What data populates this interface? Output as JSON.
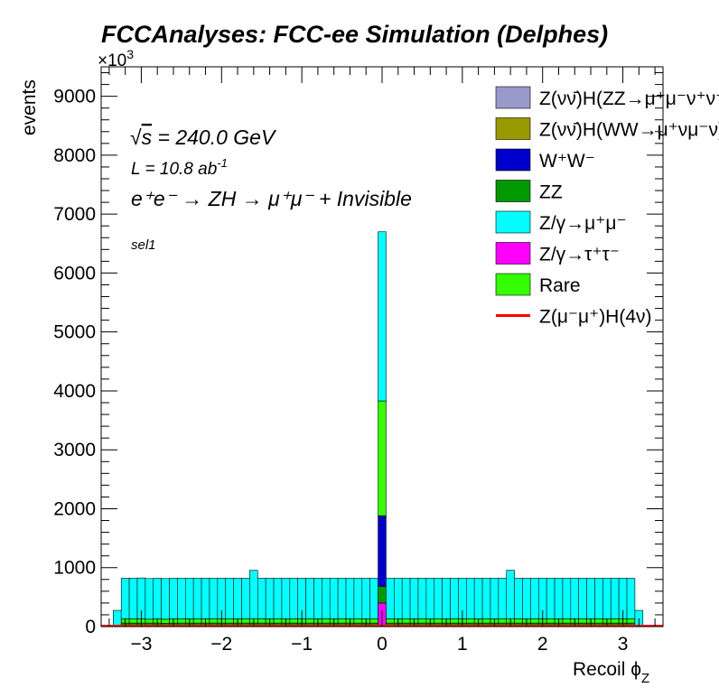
{
  "chart_data": {
    "type": "bar",
    "title": "FCCAnalyses: FCC-ee Simulation (Delphes)",
    "xlabel": "Recoil ϕ",
    "xlabel_sub": "Z",
    "ylabel": "events",
    "y_multiplier": "×10",
    "y_multiplier_exp": "3",
    "xlim": [
      -3.5,
      3.5
    ],
    "ylim": [
      0,
      9500
    ],
    "x_ticks": [
      -3,
      -2,
      -1,
      0,
      1,
      2,
      3
    ],
    "x_tick_labels": [
      "−3",
      "−2",
      "−1",
      "0",
      "1",
      "2",
      "3"
    ],
    "y_ticks": [
      0,
      1000,
      2000,
      3000,
      4000,
      5000,
      6000,
      7000,
      8000,
      9000
    ],
    "y_tick_labels": [
      "0",
      "1000",
      "2000",
      "3000",
      "4000",
      "5000",
      "6000",
      "7000",
      "8000",
      "9000"
    ],
    "annotations": {
      "sqrt_s": "s",
      "energy": " = 240.0 GeV",
      "lumi": "L = 10.8 ab",
      "lumi_exp": "-1",
      "process": "e⁺e⁻ → ZH → μ⁺μ⁻ + Invisible",
      "selection": "sel1"
    },
    "legend": [
      {
        "label": "Z(νν̄)H(ZZ→μ⁺μ⁻ν⁺ν⁻)",
        "color": "#9999cc",
        "type": "box"
      },
      {
        "label": "Z(νν̄)H(WW→μ⁺νμ⁻ν)",
        "color": "#999900",
        "type": "box"
      },
      {
        "label": "W⁺W⁻",
        "color": "#0000cc",
        "type": "box"
      },
      {
        "label": "ZZ",
        "color": "#009900",
        "type": "box"
      },
      {
        "label": "Z/γ→μ⁺μ⁻",
        "color": "#00ffff",
        "type": "box"
      },
      {
        "label": "Z/γ→τ⁺τ⁻",
        "color": "#ff00ff",
        "type": "box"
      },
      {
        "label": "Rare",
        "color": "#33ff00",
        "type": "box"
      },
      {
        "label": "Z(μ⁻μ⁺)H(4ν)",
        "color": "#ff0000",
        "type": "line"
      }
    ],
    "stack_order_bottom_to_top": [
      "Z/γ→τ⁺τ⁻",
      "ZZ",
      "W⁺W⁻",
      "Rare",
      "Z/γ→μ⁺μ⁻"
    ],
    "x_bins": [
      -3.3,
      -3.2,
      -3.1,
      -3.0,
      -2.9,
      -2.8,
      -2.7,
      -2.6,
      -2.5,
      -2.4,
      -2.3,
      -2.2,
      -2.1,
      -2.0,
      -1.9,
      -1.8,
      -1.7,
      -1.6,
      -1.5,
      -1.4,
      -1.3,
      -1.2,
      -1.1,
      -1.0,
      -0.9,
      -0.8,
      -0.7,
      -0.6,
      -0.5,
      -0.4,
      -0.3,
      -0.2,
      -0.1,
      0.0,
      0.1,
      0.2,
      0.3,
      0.4,
      0.5,
      0.6,
      0.7,
      0.8,
      0.9,
      1.0,
      1.1,
      1.2,
      1.3,
      1.4,
      1.5,
      1.6,
      1.7,
      1.8,
      1.9,
      2.0,
      2.1,
      2.2,
      2.3,
      2.4,
      2.5,
      2.6,
      2.7,
      2.8,
      2.9,
      3.0,
      3.1,
      3.2,
      3.3
    ],
    "series": [
      {
        "name": "Z/γ→τ⁺τ⁻",
        "values": [
          0,
          0,
          0,
          0,
          0,
          0,
          0,
          0,
          0,
          0,
          0,
          0,
          0,
          0,
          0,
          0,
          0,
          0,
          0,
          0,
          0,
          0,
          0,
          0,
          0,
          0,
          0,
          0,
          0,
          0,
          0,
          0,
          0,
          400,
          0,
          0,
          0,
          0,
          0,
          0,
          0,
          0,
          0,
          0,
          0,
          0,
          0,
          0,
          0,
          0,
          0,
          0,
          0,
          0,
          0,
          0,
          0,
          0,
          0,
          0,
          0,
          0,
          0,
          0,
          0,
          0
        ]
      },
      {
        "name": "ZZ",
        "values": [
          15,
          60,
          60,
          60,
          60,
          60,
          55,
          60,
          60,
          60,
          60,
          60,
          60,
          60,
          60,
          60,
          60,
          60,
          60,
          60,
          60,
          60,
          60,
          60,
          60,
          60,
          60,
          60,
          60,
          60,
          60,
          60,
          60,
          280,
          60,
          60,
          60,
          60,
          60,
          60,
          60,
          60,
          60,
          60,
          60,
          60,
          60,
          60,
          60,
          60,
          60,
          60,
          60,
          60,
          60,
          60,
          60,
          60,
          60,
          60,
          60,
          60,
          60,
          60,
          60,
          15
        ]
      },
      {
        "name": "W⁺W⁻",
        "values": [
          0,
          0,
          0,
          0,
          0,
          0,
          0,
          0,
          0,
          0,
          0,
          0,
          0,
          0,
          0,
          0,
          0,
          0,
          0,
          0,
          0,
          0,
          0,
          0,
          0,
          0,
          0,
          0,
          0,
          0,
          0,
          0,
          0,
          1200,
          0,
          0,
          0,
          0,
          0,
          0,
          0,
          0,
          0,
          0,
          0,
          0,
          0,
          0,
          0,
          0,
          0,
          0,
          0,
          0,
          0,
          0,
          0,
          0,
          0,
          0,
          0,
          0,
          0,
          0,
          0,
          0
        ]
      },
      {
        "name": "Rare",
        "values": [
          10,
          70,
          70,
          70,
          65,
          70,
          70,
          70,
          70,
          70,
          70,
          70,
          70,
          70,
          70,
          70,
          70,
          75,
          70,
          70,
          70,
          70,
          70,
          70,
          70,
          70,
          70,
          70,
          70,
          70,
          70,
          70,
          70,
          1950,
          70,
          70,
          70,
          70,
          70,
          70,
          70,
          70,
          70,
          70,
          70,
          70,
          70,
          70,
          70,
          75,
          70,
          70,
          70,
          70,
          70,
          70,
          70,
          70,
          70,
          70,
          70,
          70,
          70,
          70,
          70,
          10
        ]
      },
      {
        "name": "Z/γ→μ⁺μ⁻",
        "values": [
          250,
          690,
          690,
          695,
          690,
          690,
          690,
          690,
          690,
          690,
          690,
          690,
          690,
          690,
          690,
          690,
          690,
          820,
          690,
          690,
          690,
          690,
          690,
          690,
          690,
          690,
          690,
          690,
          690,
          690,
          690,
          690,
          690,
          2870,
          690,
          690,
          690,
          690,
          690,
          690,
          690,
          690,
          690,
          690,
          690,
          690,
          690,
          690,
          690,
          820,
          690,
          690,
          690,
          690,
          690,
          690,
          690,
          690,
          690,
          690,
          690,
          690,
          690,
          690,
          690,
          250
        ]
      }
    ]
  }
}
